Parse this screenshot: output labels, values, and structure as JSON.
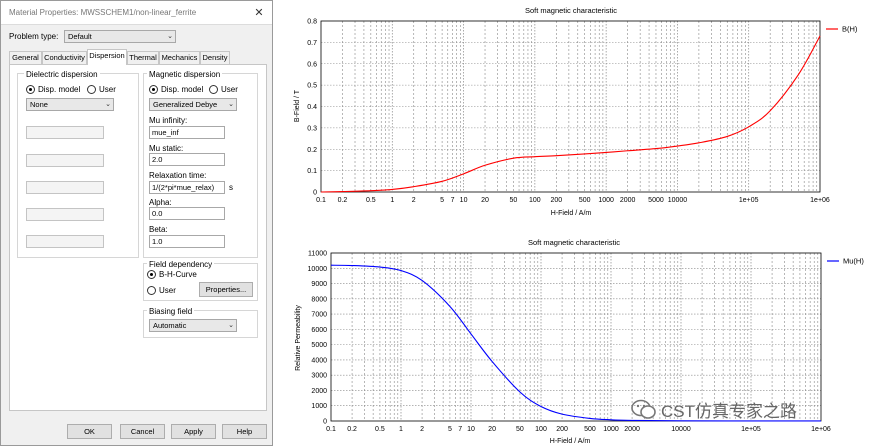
{
  "dialog": {
    "title": "Material Properties: MWSSCHEM1/non-linear_ferrite",
    "close_icon": "close-icon",
    "problem_type_label": "Problem type:",
    "problem_type_value": "Default",
    "tabs": [
      "General",
      "Conductivity",
      "Dispersion",
      "Thermal",
      "Mechanics",
      "Density"
    ],
    "active_tab": "Dispersion",
    "dielectric": {
      "title": "Dielectric dispersion",
      "radio_disp": "Disp. model",
      "radio_user": "User",
      "model": "None"
    },
    "magnetic": {
      "title": "Magnetic dispersion",
      "radio_disp": "Disp. model",
      "radio_user": "User",
      "model": "Generalized Debye",
      "mu_inf_label": "Mu infinity:",
      "mu_inf_value": "mue_inf",
      "mu_static_label": "Mu static:",
      "mu_static_value": "2.0",
      "relax_label": "Relaxation time:",
      "relax_value": "1/(2*pi*mue_relax)",
      "relax_unit": "s",
      "alpha_label": "Alpha:",
      "alpha_value": "0.0",
      "beta_label": "Beta:",
      "beta_value": "1.0"
    },
    "field_dependency": {
      "title": "Field dependency",
      "radio_bh": "B-H-Curve",
      "radio_user": "User",
      "properties_button": "Properties..."
    },
    "biasing": {
      "title": "Biasing field",
      "value": "Automatic"
    },
    "buttons": {
      "ok": "OK",
      "cancel": "Cancel",
      "apply": "Apply",
      "help": "Help"
    }
  },
  "watermark": {
    "text": "CST仿真专家之路",
    "icon": "wechat-icon"
  },
  "chart_data": [
    {
      "type": "line",
      "title": "Soft magnetic characteristic",
      "xlabel": "H-Field / A/m",
      "ylabel": "B-Field / T",
      "x_scale": "log",
      "xlim": [
        0.1,
        1000000
      ],
      "ylim": [
        0,
        0.8
      ],
      "x_ticks": [
        "0.1",
        "0.2",
        "0.5",
        "1",
        "2",
        "5",
        "7",
        "10",
        "20",
        "50",
        "100",
        "200",
        "500",
        "1000",
        "2000",
        "5000",
        "10000",
        "1e+05",
        "1e+06"
      ],
      "y_ticks": [
        "0",
        "0.1",
        "0.2",
        "0.3",
        "0.4",
        "0.5",
        "0.6",
        "0.7",
        "0.8"
      ],
      "grid": true,
      "legend": "top-right",
      "series": [
        {
          "name": "B(H)",
          "color": "#ff0000",
          "x": [
            0.1,
            0.2,
            0.5,
            1,
            2,
            5,
            10,
            20,
            50,
            100,
            200,
            500,
            1000,
            2000,
            5000,
            10000,
            20000,
            50000,
            100000,
            200000,
            500000,
            1000000
          ],
          "y": [
            0,
            0.002,
            0.006,
            0.012,
            0.025,
            0.05,
            0.085,
            0.125,
            0.158,
            0.165,
            0.17,
            0.178,
            0.185,
            0.193,
            0.203,
            0.215,
            0.23,
            0.26,
            0.305,
            0.38,
            0.55,
            0.73
          ]
        }
      ]
    },
    {
      "type": "line",
      "title": "Soft magnetic characteristic",
      "xlabel": "H-Field / A/m",
      "ylabel": "Relative Permeability",
      "x_scale": "log",
      "xlim": [
        0.1,
        1000000
      ],
      "ylim": [
        0,
        11000
      ],
      "x_ticks": [
        "0.1",
        "0.2",
        "0.5",
        "1",
        "2",
        "5",
        "7",
        "10",
        "20",
        "50",
        "100",
        "200",
        "500",
        "1000",
        "2000",
        "10000",
        "1e+05",
        "1e+06"
      ],
      "y_ticks": [
        "0",
        "1000",
        "2000",
        "3000",
        "4000",
        "5000",
        "6000",
        "7000",
        "8000",
        "9000",
        "10000",
        "11000"
      ],
      "grid": true,
      "legend": "top-right",
      "series": [
        {
          "name": "Mu(H)",
          "color": "#0000ff",
          "x": [
            0.1,
            0.2,
            0.5,
            1,
            2,
            5,
            10,
            20,
            50,
            100,
            200,
            500,
            1000,
            2000,
            10000,
            100000,
            1000000
          ],
          "y": [
            10200,
            10180,
            10080,
            9850,
            9200,
            7500,
            5700,
            3900,
            1900,
            950,
            450,
            170,
            80,
            40,
            10,
            2,
            1
          ]
        }
      ]
    }
  ]
}
